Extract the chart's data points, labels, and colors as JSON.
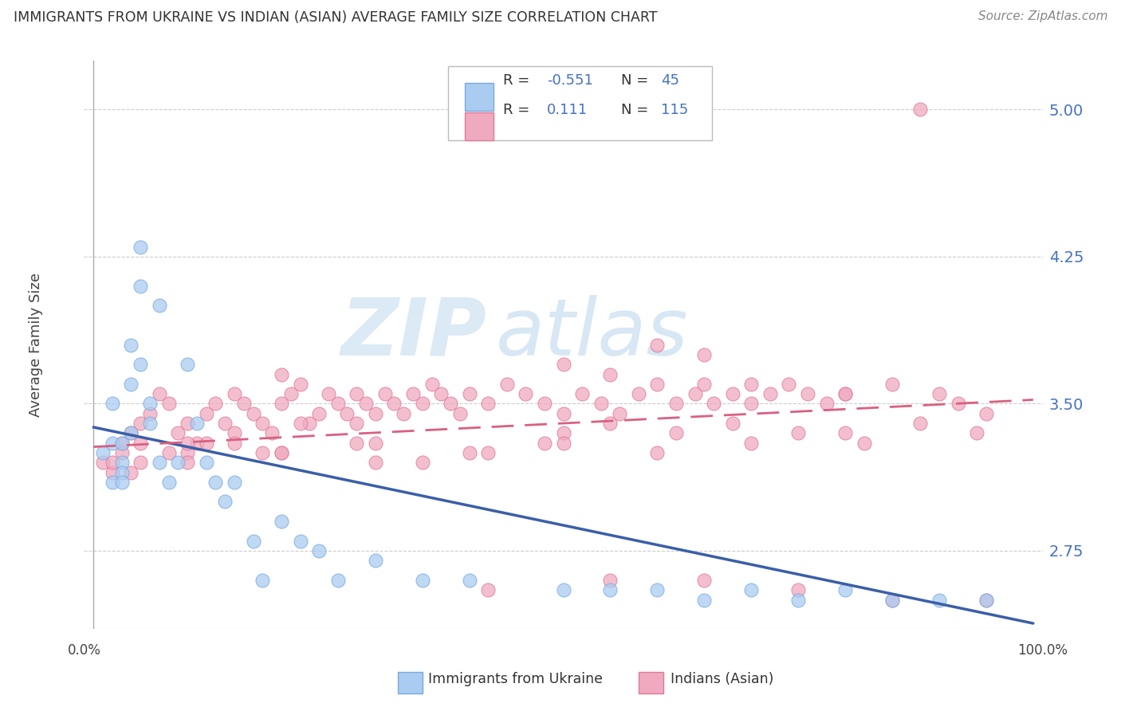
{
  "title": "IMMIGRANTS FROM UKRAINE VS INDIAN (ASIAN) AVERAGE FAMILY SIZE CORRELATION CHART",
  "source": "Source: ZipAtlas.com",
  "ylabel": "Average Family Size",
  "y_ticks_right": [
    2.75,
    3.5,
    4.25,
    5.0
  ],
  "y_lim": [
    2.35,
    5.25
  ],
  "x_lim": [
    -0.01,
    1.01
  ],
  "ukraine_color": "#aaccf0",
  "ukraine_edge": "#7aaade",
  "india_color": "#f0aac0",
  "india_edge": "#e07898",
  "trend_blue": "#3a5fa8",
  "trend_pink": "#d96080",
  "watermark_zip": "ZIP",
  "watermark_atlas": "atlas",
  "grid_color": "#cccccc",
  "background_color": "#ffffff",
  "blue_trend_x0": 0.0,
  "blue_trend_y0": 3.38,
  "blue_trend_x1": 1.0,
  "blue_trend_y1": 2.38,
  "pink_trend_x0": 0.0,
  "pink_trend_y0": 3.28,
  "pink_trend_x1": 1.0,
  "pink_trend_y1": 3.52,
  "ukraine_x": [
    0.01,
    0.02,
    0.02,
    0.02,
    0.03,
    0.03,
    0.03,
    0.03,
    0.04,
    0.04,
    0.04,
    0.05,
    0.05,
    0.05,
    0.06,
    0.06,
    0.07,
    0.07,
    0.08,
    0.09,
    0.1,
    0.11,
    0.12,
    0.13,
    0.14,
    0.15,
    0.17,
    0.18,
    0.2,
    0.22,
    0.24,
    0.26,
    0.3,
    0.35,
    0.4,
    0.5,
    0.55,
    0.6,
    0.65,
    0.7,
    0.75,
    0.8,
    0.85,
    0.9,
    0.95
  ],
  "ukraine_y": [
    3.25,
    3.3,
    3.1,
    3.5,
    3.2,
    3.3,
    3.15,
    3.1,
    3.35,
    3.6,
    3.8,
    4.1,
    4.3,
    3.7,
    3.4,
    3.5,
    4.0,
    3.2,
    3.1,
    3.2,
    3.7,
    3.4,
    3.2,
    3.1,
    3.0,
    3.1,
    2.8,
    2.6,
    2.9,
    2.8,
    2.75,
    2.6,
    2.7,
    2.6,
    2.6,
    2.55,
    2.55,
    2.55,
    2.5,
    2.55,
    2.5,
    2.55,
    2.5,
    2.5,
    2.5
  ],
  "india_x": [
    0.01,
    0.02,
    0.03,
    0.03,
    0.04,
    0.05,
    0.05,
    0.06,
    0.07,
    0.08,
    0.09,
    0.1,
    0.1,
    0.11,
    0.12,
    0.13,
    0.14,
    0.15,
    0.15,
    0.16,
    0.17,
    0.18,
    0.19,
    0.2,
    0.2,
    0.21,
    0.22,
    0.23,
    0.24,
    0.25,
    0.26,
    0.27,
    0.28,
    0.28,
    0.29,
    0.3,
    0.31,
    0.32,
    0.33,
    0.34,
    0.35,
    0.36,
    0.37,
    0.38,
    0.39,
    0.4,
    0.42,
    0.44,
    0.46,
    0.48,
    0.5,
    0.52,
    0.54,
    0.56,
    0.58,
    0.6,
    0.62,
    0.64,
    0.65,
    0.66,
    0.68,
    0.7,
    0.72,
    0.74,
    0.76,
    0.78,
    0.8,
    0.5,
    0.55,
    0.6,
    0.65,
    0.7,
    0.8,
    0.85,
    0.9,
    0.92,
    0.95,
    0.5,
    0.3,
    0.2,
    0.15,
    0.08,
    0.05,
    0.95,
    0.02,
    0.04,
    0.1,
    0.12,
    0.18,
    0.22,
    0.28,
    0.35,
    0.42,
    0.48,
    0.55,
    0.62,
    0.68,
    0.75,
    0.82,
    0.88,
    0.94,
    0.1,
    0.2,
    0.3,
    0.4,
    0.5,
    0.6,
    0.7,
    0.8,
    0.85,
    0.42,
    0.55,
    0.65,
    0.75,
    0.88
  ],
  "india_y": [
    3.2,
    3.15,
    3.3,
    3.25,
    3.35,
    3.2,
    3.4,
    3.45,
    3.55,
    3.5,
    3.35,
    3.4,
    3.25,
    3.3,
    3.45,
    3.5,
    3.4,
    3.35,
    3.55,
    3.5,
    3.45,
    3.4,
    3.35,
    3.5,
    3.65,
    3.55,
    3.6,
    3.4,
    3.45,
    3.55,
    3.5,
    3.45,
    3.55,
    3.4,
    3.5,
    3.45,
    3.55,
    3.5,
    3.45,
    3.55,
    3.5,
    3.6,
    3.55,
    3.5,
    3.45,
    3.55,
    3.5,
    3.6,
    3.55,
    3.5,
    3.45,
    3.55,
    3.5,
    3.45,
    3.55,
    3.6,
    3.5,
    3.55,
    3.6,
    3.5,
    3.55,
    3.5,
    3.55,
    3.6,
    3.55,
    3.5,
    3.55,
    3.7,
    3.65,
    3.8,
    3.75,
    3.6,
    3.55,
    3.6,
    3.55,
    3.5,
    3.45,
    3.35,
    3.3,
    3.25,
    3.3,
    3.25,
    3.3,
    2.5,
    3.2,
    3.15,
    3.2,
    3.3,
    3.25,
    3.4,
    3.3,
    3.2,
    3.25,
    3.3,
    3.4,
    3.35,
    3.4,
    3.35,
    3.3,
    3.4,
    3.35,
    3.3,
    3.25,
    3.2,
    3.25,
    3.3,
    3.25,
    3.3,
    3.35,
    2.5,
    2.55,
    2.6,
    2.6,
    2.55,
    5.0
  ]
}
